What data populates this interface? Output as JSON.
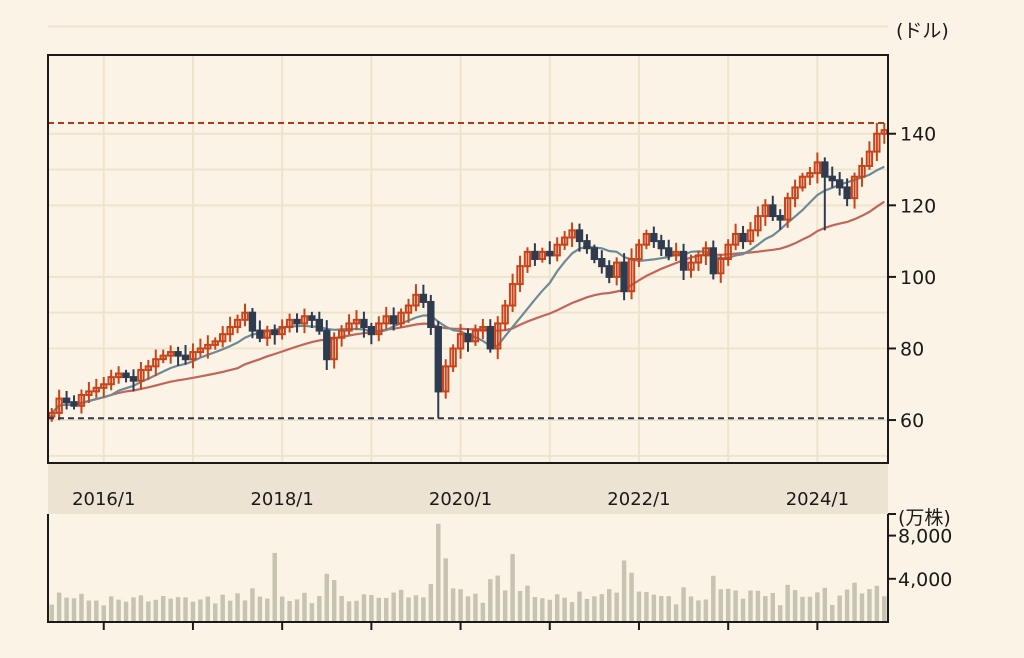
{
  "chart_data": {
    "type": "candlestick",
    "price_unit": "(ドル)",
    "volume_unit": "(万株)",
    "price_axis": {
      "ylim": [
        48,
        162
      ],
      "ticks": [
        "60",
        "80",
        "100",
        "120",
        "140"
      ],
      "tick_values": [
        60,
        80,
        100,
        120,
        140
      ]
    },
    "volume_axis": {
      "ylim": [
        0,
        10000
      ],
      "ticks": [
        "4,000",
        "8,000"
      ],
      "tick_values": [
        4000,
        8000
      ]
    },
    "x_axis": {
      "start": "2015/6",
      "end": "2024/11",
      "labels": [
        "2016/1",
        "2018/1",
        "2020/1",
        "2022/1",
        "2024/1"
      ],
      "label_months": [
        "2016-01",
        "2018-01",
        "2020-01",
        "2022-01",
        "2024-01"
      ]
    },
    "reference_lines": [
      {
        "label": "high",
        "value": 143,
        "color": "#b23a1a"
      },
      {
        "label": "low",
        "value": 60.5,
        "color": "#2e3a4e"
      }
    ],
    "colors": {
      "up": "#c8431a",
      "down": "#2f3b4f",
      "ma_short": "#6e8a96",
      "ma_long": "#c2655a",
      "grid": "#efe3cc",
      "date_band": "#ece3d2",
      "volume": "#c6c3b0"
    },
    "close": [
      62,
      66,
      65,
      64,
      67,
      68,
      69,
      70,
      72,
      73,
      72,
      71,
      74,
      75,
      77,
      78,
      79,
      78,
      77,
      79,
      80,
      81,
      82,
      84,
      86,
      88,
      90,
      85,
      83,
      85,
      84,
      86,
      88,
      87,
      89,
      88,
      85,
      77,
      83,
      85,
      87,
      88,
      86,
      84,
      87,
      89,
      87,
      90,
      92,
      95,
      93,
      86,
      68,
      75,
      80,
      84,
      82,
      85,
      86,
      80,
      87,
      92,
      98,
      103,
      107,
      105,
      107,
      106,
      109,
      111,
      113,
      110,
      108,
      105,
      103,
      100,
      104,
      96,
      105,
      109,
      112,
      110,
      108,
      106,
      107,
      102,
      104,
      106,
      108,
      101,
      105,
      109,
      112,
      110,
      113,
      117,
      120,
      117,
      116,
      122,
      125,
      128,
      129,
      132,
      128,
      127,
      125,
      122,
      128,
      131,
      135,
      140,
      141
    ]
  }
}
